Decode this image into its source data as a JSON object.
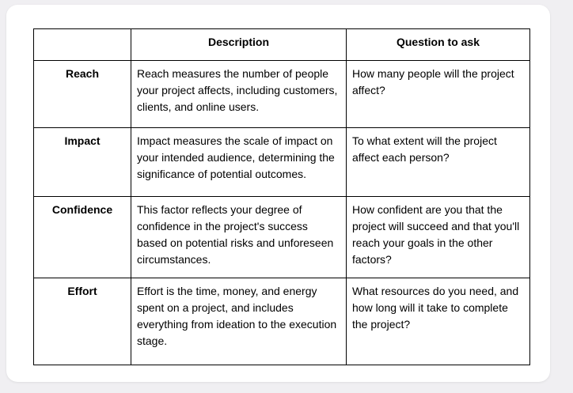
{
  "table": {
    "headers": [
      "",
      "Description",
      "Question to ask"
    ],
    "rows": [
      {
        "factor": "Reach",
        "description": "Reach measures the number of people your project affects, including customers, clients, and online users.",
        "question": "How many people will the project affect?"
      },
      {
        "factor": "Impact",
        "description": "Impact measures the scale of impact on your intended audience, determining the significance of potential outcomes.",
        "question": "To what extent will the project affect each person?"
      },
      {
        "factor": "Confidence",
        "description": "This factor reflects your degree of confidence in the project's success based on potential risks and unforeseen circumstances.",
        "question": "How confident are you that the project will succeed and that you'll reach your goals in the other factors?"
      },
      {
        "factor": "Effort",
        "description": "Effort is the time, money, and energy spent on a project, and includes everything from ideation to the execution stage.",
        "question": "What resources do you need, and how long will it take to complete the project?"
      }
    ]
  },
  "colors": {
    "page_background": "#f0eff2",
    "card_background": "#ffffff",
    "table_border": "#000000",
    "text": "#000000"
  }
}
